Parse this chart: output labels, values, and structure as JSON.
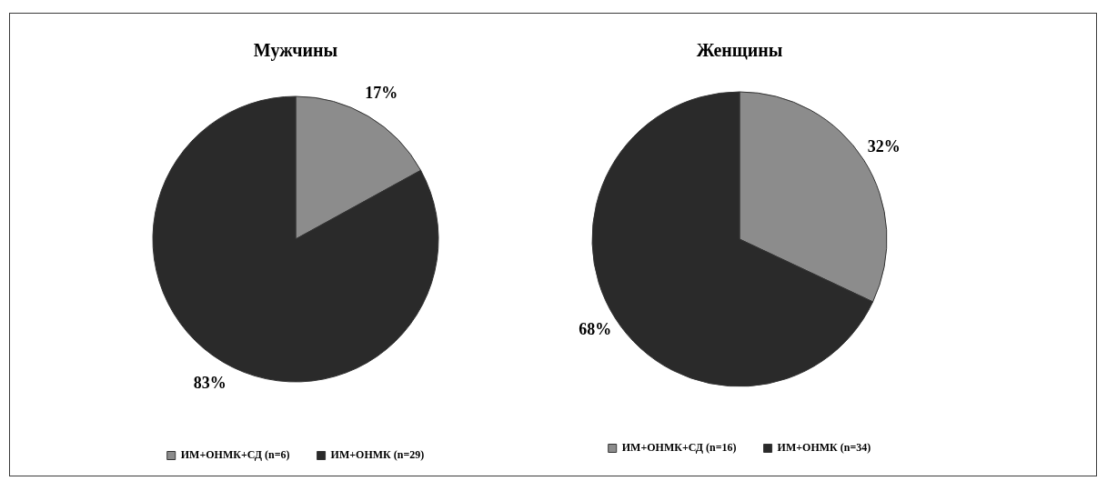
{
  "chart_data": [
    {
      "type": "pie",
      "title": "Мужчины",
      "categories": [
        "ИМ+ОНМК+СД (n=6)",
        "ИМ+ОНМК (n=29)"
      ],
      "values": [
        17,
        83
      ],
      "colors": [
        "#8c8c8c",
        "#2a2a2a"
      ],
      "value_labels": [
        "17%",
        "83%"
      ],
      "legend": "bottom"
    },
    {
      "type": "pie",
      "title": "Женщины",
      "categories": [
        "ИМ+ОНМК+СД (n=16)",
        "ИМ+ОНМК (n=34)"
      ],
      "values": [
        32,
        68
      ],
      "colors": [
        "#8c8c8c",
        "#2a2a2a"
      ],
      "value_labels": [
        "32%",
        "68%"
      ],
      "legend": "bottom"
    }
  ]
}
